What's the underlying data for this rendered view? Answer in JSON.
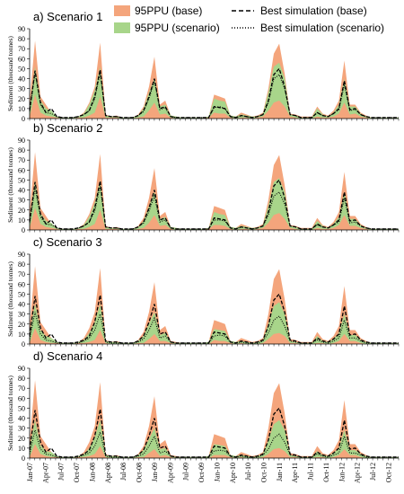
{
  "legend": {
    "base_band": "95PPU (base)",
    "scenario_band": "95PPU (scenario)",
    "base_line": "Best simulation (base)",
    "scenario_line": "Best simulation (scenario)"
  },
  "colors": {
    "base_band": "#f4a57c",
    "scenario_band": "#a8d58a",
    "lines": "#000000"
  },
  "chart_data": {
    "type": "area",
    "ylabel": "Sediment (thousand tonnes)",
    "ylim": [
      0,
      90
    ],
    "yticks": [
      0,
      10,
      20,
      30,
      40,
      50,
      60,
      70,
      80,
      90
    ],
    "x_labels": [
      "Jan-07",
      "Apr-07",
      "Jul-07",
      "Oct-07",
      "Jan-08",
      "Apr-08",
      "Jul-08",
      "Oct-08",
      "Jan-09",
      "Apr-09",
      "Jul-09",
      "Oct-09",
      "Jan-10",
      "Apr-10",
      "Jul-10",
      "Oct-10",
      "Jan-11",
      "Apr-11",
      "Jul-11",
      "Oct-11",
      "Jan-12",
      "Apr-12",
      "Jul-12",
      "Oct-12"
    ],
    "base_upper": [
      18,
      78,
      22,
      14,
      6,
      2,
      1,
      1,
      1,
      2,
      6,
      16,
      32,
      76,
      4,
      2,
      3,
      1,
      1,
      1,
      4,
      12,
      32,
      62,
      14,
      18,
      3,
      2,
      1,
      1,
      1,
      1,
      1,
      2,
      24,
      22,
      20,
      3,
      2,
      6,
      4,
      2,
      3,
      6,
      30,
      65,
      75,
      45,
      5,
      4,
      2,
      2,
      2,
      12,
      5,
      3,
      8,
      18,
      58,
      14,
      14,
      6,
      3,
      1,
      1,
      1,
      1,
      1,
      1
    ],
    "base_best": [
      8,
      48,
      16,
      6,
      10,
      2,
      1,
      1,
      1,
      2,
      4,
      8,
      22,
      49,
      3,
      2,
      2,
      1,
      1,
      1,
      3,
      8,
      22,
      40,
      10,
      12,
      2,
      1,
      1,
      1,
      1,
      1,
      1,
      1,
      12,
      11,
      10,
      2,
      1,
      3,
      2,
      1,
      2,
      4,
      18,
      44,
      50,
      32,
      4,
      3,
      1,
      1,
      1,
      6,
      3,
      2,
      5,
      10,
      38,
      9,
      10,
      4,
      2,
      1,
      1,
      1,
      1,
      1,
      1
    ],
    "panels": [
      {
        "title": "a) Scenario 1",
        "scn_upper": [
          12,
          52,
          18,
          10,
          8,
          2,
          1,
          1,
          1,
          2,
          5,
          14,
          28,
          52,
          3,
          2,
          2,
          1,
          1,
          1,
          3,
          10,
          26,
          40,
          12,
          14,
          3,
          2,
          1,
          1,
          1,
          1,
          1,
          2,
          20,
          18,
          17,
          3,
          2,
          4,
          3,
          2,
          2,
          5,
          26,
          52,
          56,
          40,
          4,
          3,
          1,
          1,
          1,
          10,
          4,
          2,
          6,
          14,
          40,
          12,
          12,
          5,
          2,
          1,
          1,
          1,
          1,
          1,
          1
        ],
        "scn_lower": [
          2,
          24,
          6,
          3,
          2,
          1,
          0,
          0,
          0,
          1,
          1,
          3,
          6,
          22,
          1,
          1,
          1,
          0,
          0,
          0,
          1,
          2,
          8,
          16,
          4,
          5,
          1,
          0,
          0,
          0,
          0,
          0,
          0,
          1,
          6,
          5,
          5,
          1,
          0,
          1,
          1,
          0,
          1,
          2,
          8,
          16,
          18,
          12,
          2,
          1,
          0,
          0,
          0,
          2,
          1,
          1,
          2,
          5,
          16,
          4,
          5,
          2,
          1,
          0,
          0,
          0,
          0,
          0,
          0
        ],
        "scn_best": [
          7,
          46,
          14,
          6,
          5,
          2,
          1,
          1,
          1,
          2,
          4,
          8,
          20,
          46,
          3,
          2,
          2,
          1,
          1,
          1,
          3,
          7,
          20,
          38,
          9,
          11,
          2,
          1,
          1,
          1,
          1,
          1,
          1,
          1,
          11,
          12,
          10,
          2,
          1,
          3,
          2,
          1,
          2,
          4,
          16,
          40,
          44,
          30,
          4,
          3,
          1,
          1,
          1,
          6,
          3,
          2,
          5,
          9,
          34,
          8,
          9,
          4,
          2,
          1,
          1,
          1,
          1,
          1,
          1
        ]
      },
      {
        "title": "b) Scenario 2",
        "scn_upper": [
          12,
          50,
          17,
          9,
          7,
          2,
          1,
          1,
          1,
          2,
          5,
          13,
          27,
          50,
          3,
          2,
          2,
          1,
          1,
          1,
          3,
          9,
          24,
          38,
          11,
          13,
          3,
          2,
          1,
          1,
          1,
          1,
          1,
          2,
          18,
          16,
          15,
          3,
          2,
          4,
          3,
          2,
          2,
          5,
          24,
          48,
          52,
          38,
          4,
          3,
          1,
          1,
          1,
          9,
          4,
          2,
          6,
          13,
          38,
          11,
          11,
          5,
          2,
          1,
          1,
          1,
          1,
          1,
          1
        ],
        "scn_lower": [
          2,
          22,
          6,
          3,
          2,
          1,
          0,
          0,
          0,
          1,
          1,
          3,
          6,
          20,
          1,
          1,
          1,
          0,
          0,
          0,
          1,
          2,
          7,
          15,
          4,
          5,
          1,
          0,
          0,
          0,
          0,
          0,
          0,
          1,
          5,
          5,
          4,
          1,
          0,
          1,
          1,
          0,
          1,
          2,
          7,
          15,
          17,
          11,
          2,
          1,
          0,
          0,
          0,
          2,
          1,
          1,
          2,
          5,
          15,
          4,
          4,
          2,
          1,
          0,
          0,
          0,
          0,
          0,
          0
        ],
        "scn_best": [
          7,
          42,
          13,
          6,
          5,
          2,
          1,
          1,
          1,
          2,
          4,
          8,
          19,
          44,
          3,
          2,
          2,
          1,
          1,
          1,
          3,
          7,
          19,
          34,
          8,
          10,
          2,
          1,
          1,
          1,
          1,
          1,
          1,
          1,
          10,
          10,
          9,
          2,
          1,
          3,
          2,
          1,
          2,
          4,
          15,
          34,
          38,
          26,
          4,
          3,
          1,
          1,
          1,
          5,
          3,
          2,
          5,
          8,
          32,
          7,
          8,
          4,
          2,
          1,
          1,
          1,
          1,
          1,
          1
        ]
      },
      {
        "title": "c) Scenario 3",
        "scn_upper": [
          10,
          40,
          14,
          8,
          6,
          2,
          1,
          1,
          1,
          2,
          4,
          11,
          22,
          40,
          3,
          2,
          2,
          1,
          1,
          1,
          3,
          8,
          20,
          32,
          9,
          11,
          2,
          1,
          1,
          1,
          1,
          1,
          1,
          2,
          15,
          14,
          13,
          3,
          2,
          3,
          2,
          1,
          2,
          4,
          20,
          38,
          42,
          30,
          3,
          2,
          1,
          1,
          1,
          8,
          3,
          2,
          5,
          11,
          30,
          9,
          9,
          4,
          2,
          1,
          1,
          1,
          1,
          1,
          1
        ],
        "scn_lower": [
          1,
          16,
          4,
          2,
          1,
          1,
          0,
          0,
          0,
          1,
          1,
          2,
          4,
          14,
          1,
          0,
          0,
          0,
          0,
          0,
          1,
          1,
          5,
          10,
          3,
          3,
          1,
          0,
          0,
          0,
          0,
          0,
          0,
          0,
          4,
          3,
          3,
          1,
          0,
          1,
          0,
          0,
          0,
          1,
          5,
          10,
          11,
          8,
          1,
          1,
          0,
          0,
          0,
          1,
          1,
          0,
          1,
          3,
          10,
          3,
          3,
          1,
          0,
          0,
          0,
          0,
          0,
          0,
          0
        ],
        "scn_best": [
          5,
          32,
          10,
          4,
          3,
          1,
          1,
          1,
          1,
          1,
          3,
          6,
          14,
          30,
          2,
          1,
          1,
          1,
          1,
          1,
          2,
          5,
          14,
          26,
          6,
          8,
          2,
          1,
          1,
          1,
          1,
          1,
          1,
          1,
          8,
          9,
          8,
          2,
          1,
          2,
          1,
          1,
          1,
          3,
          11,
          24,
          28,
          18,
          3,
          2,
          1,
          1,
          1,
          4,
          2,
          1,
          3,
          6,
          24,
          6,
          6,
          3,
          1,
          1,
          1,
          1,
          1,
          1,
          1
        ]
      },
      {
        "title": "d) Scenario 4",
        "scn_upper": [
          10,
          38,
          13,
          7,
          6,
          2,
          1,
          1,
          1,
          2,
          4,
          10,
          21,
          38,
          3,
          2,
          2,
          1,
          1,
          1,
          3,
          8,
          19,
          30,
          9,
          10,
          2,
          1,
          1,
          1,
          1,
          1,
          1,
          2,
          14,
          13,
          12,
          3,
          2,
          3,
          2,
          1,
          2,
          4,
          18,
          34,
          38,
          28,
          3,
          2,
          1,
          1,
          1,
          7,
          3,
          2,
          5,
          10,
          28,
          8,
          8,
          4,
          2,
          1,
          1,
          1,
          1,
          1,
          1
        ],
        "scn_lower": [
          1,
          14,
          4,
          2,
          1,
          1,
          0,
          0,
          0,
          1,
          1,
          2,
          4,
          12,
          1,
          0,
          0,
          0,
          0,
          0,
          1,
          1,
          5,
          9,
          2,
          3,
          1,
          0,
          0,
          0,
          0,
          0,
          0,
          0,
          3,
          3,
          3,
          1,
          0,
          1,
          0,
          0,
          0,
          1,
          4,
          9,
          10,
          7,
          1,
          1,
          0,
          0,
          0,
          1,
          1,
          0,
          1,
          3,
          9,
          3,
          3,
          1,
          0,
          0,
          0,
          0,
          0,
          0,
          0
        ],
        "scn_best": [
          4,
          28,
          9,
          4,
          3,
          1,
          1,
          1,
          1,
          1,
          3,
          5,
          12,
          26,
          2,
          1,
          1,
          1,
          1,
          1,
          2,
          4,
          12,
          22,
          5,
          7,
          2,
          1,
          1,
          1,
          1,
          1,
          1,
          1,
          7,
          8,
          7,
          2,
          1,
          2,
          1,
          1,
          1,
          3,
          9,
          20,
          24,
          16,
          3,
          2,
          1,
          1,
          1,
          4,
          2,
          1,
          3,
          5,
          22,
          5,
          5,
          3,
          1,
          1,
          1,
          1,
          1,
          1,
          1
        ]
      }
    ]
  }
}
